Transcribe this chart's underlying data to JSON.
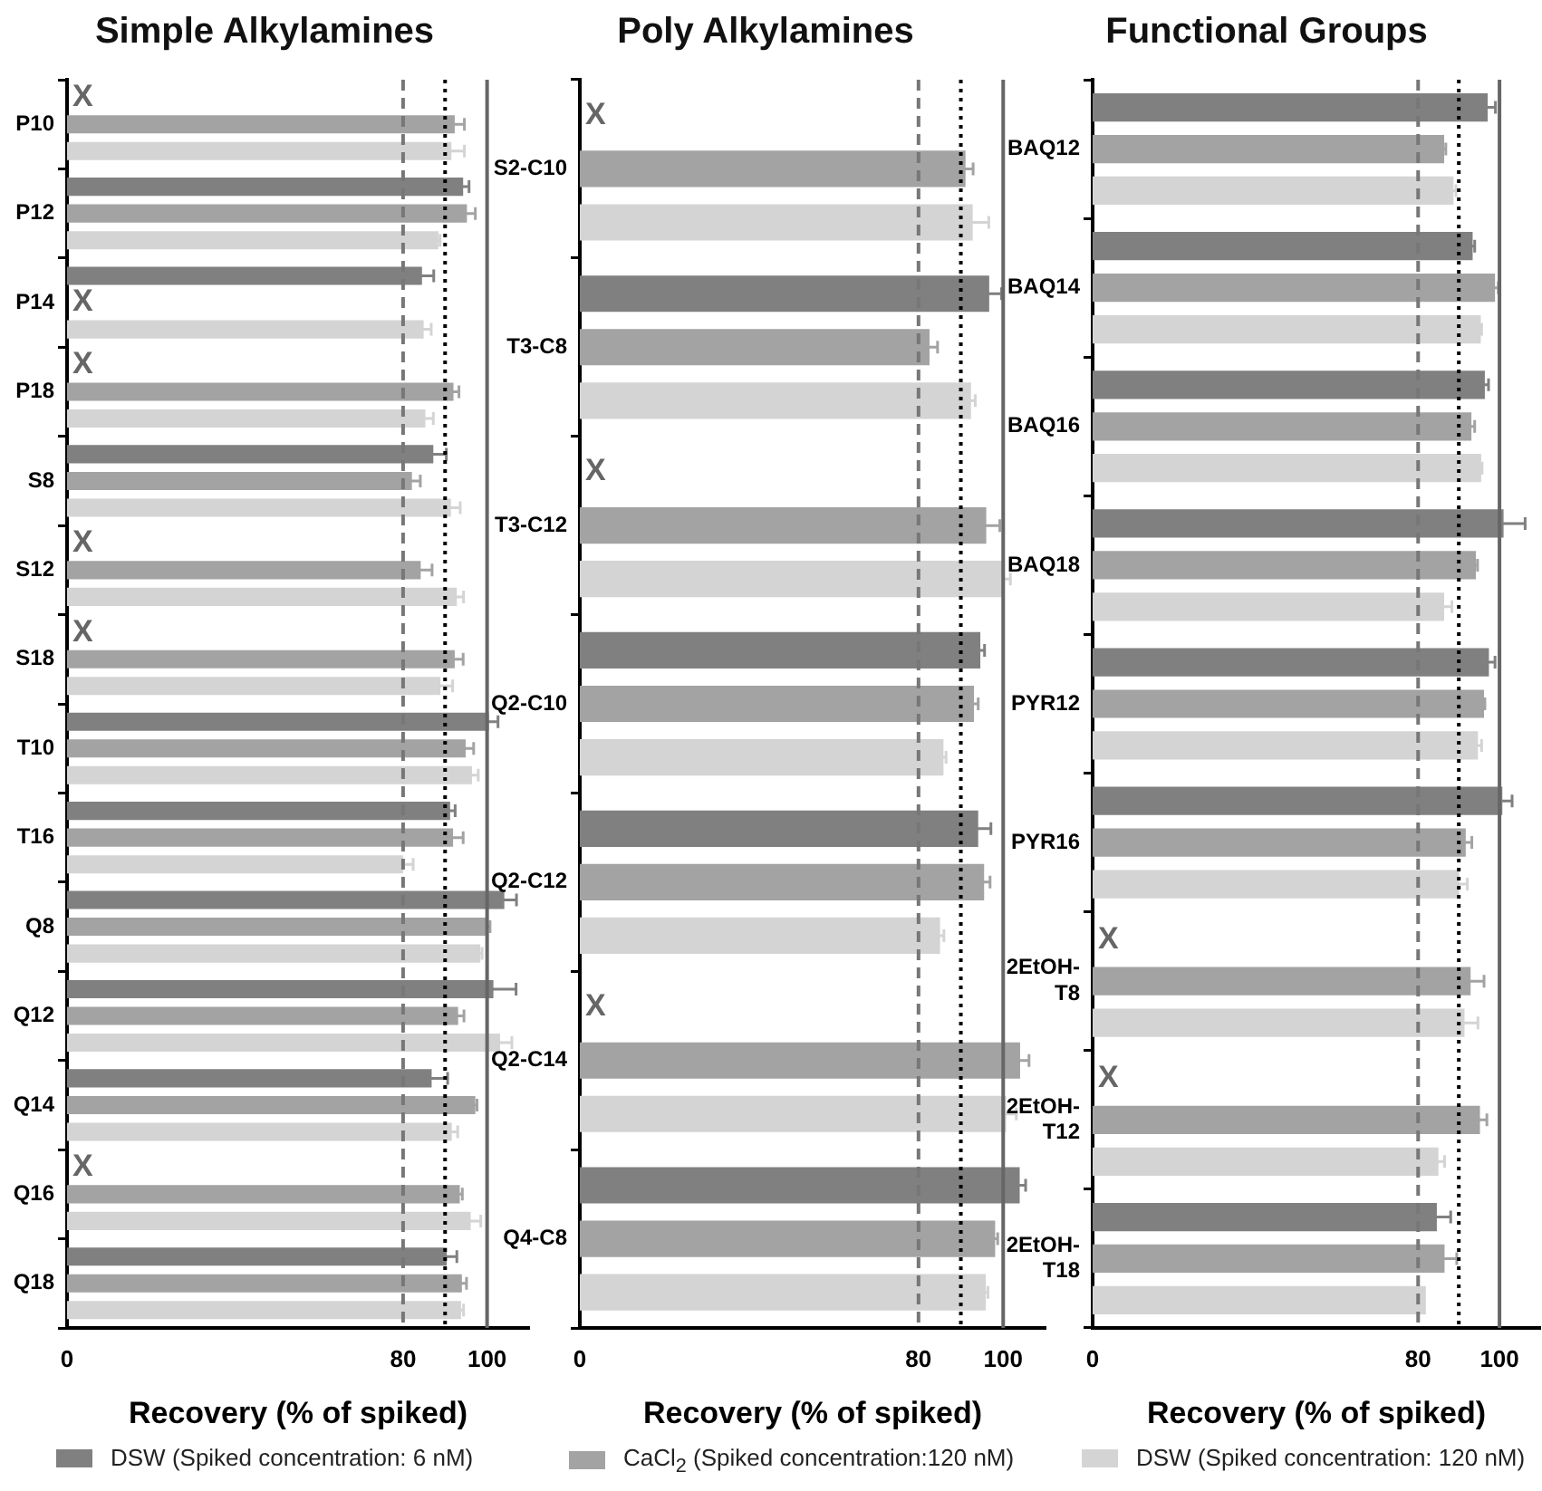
{
  "chart_data": [
    {
      "type": "bar",
      "orientation": "horizontal",
      "title": "Simple Alkylamines",
      "xlabel": "Recovery (% of spiked)",
      "categories": [
        "P10",
        "P12",
        "P14",
        "P18",
        "S8",
        "S12",
        "S18",
        "T10",
        "T16",
        "Q8",
        "Q12",
        "Q14",
        "Q16",
        "Q18"
      ],
      "series": [
        {
          "name": "DSW (Spiked concentration: 6 nM)",
          "color": "#808080",
          "values": [
            null,
            94.3,
            84.5,
            null,
            87.2,
            null,
            null,
            100.4,
            91.2,
            104.1,
            101.5,
            86.8,
            null,
            90.4
          ],
          "errors": [
            null,
            1.4,
            2.8,
            null,
            3.1,
            null,
            null,
            2.2,
            1.2,
            2.9,
            5.4,
            3.8,
            null,
            2.4
          ]
        },
        {
          "name": "CaCl$_{2}$ (Spiked concentration:120 nM)",
          "color": "#a3a3a3",
          "values": [
            92.3,
            95.2,
            null,
            92.0,
            82.1,
            84.2,
            92.3,
            94.9,
            91.9,
            100.3,
            93.1,
            97.2,
            93.5,
            94.0
          ],
          "errors": [
            2.3,
            2.0,
            null,
            1.3,
            2.0,
            2.7,
            2.0,
            1.9,
            2.4,
            0.4,
            1.4,
            0.4,
            0.6,
            1.1
          ]
        },
        {
          "name": "DSW (Spiked concentration: 120 nM)",
          "color": "#d4d4d4",
          "values": [
            91.5,
            88.4,
            84.9,
            85.3,
            91.4,
            92.8,
            88.9,
            96.4,
            80.0,
            98.4,
            103.1,
            91.6,
            96.1,
            93.8
          ],
          "errors": [
            3.1,
            0.4,
            1.8,
            1.9,
            2.2,
            1.6,
            2.9,
            1.5,
            2.4,
            0.4,
            2.8,
            1.4,
            2.4,
            0.6
          ]
        }
      ],
      "xlim": [
        0,
        110
      ],
      "xticks": [
        0,
        80,
        100
      ],
      "ref_lines": [
        {
          "axis": "x",
          "value": 80,
          "color": "#777777",
          "line_style": "dashed"
        },
        {
          "axis": "x",
          "value": 90,
          "color": "#000000",
          "line_style": "dotted"
        },
        {
          "axis": "x",
          "value": 100,
          "color": "#666666",
          "line_style": "solid"
        }
      ],
      "annotations": [
        "X",
        "X",
        "X",
        "X",
        "X",
        "X"
      ],
      "legend": "bottom"
    },
    {
      "type": "bar",
      "orientation": "horizontal",
      "title": "Poly Alkylamines",
      "xlabel": "Recovery (% of spiked)",
      "categories": [
        "S2-C10",
        "T3-C8",
        "T3-C12",
        "Q2-C10",
        "Q2-C12",
        "Q2-C14",
        "Q4-C8"
      ],
      "series": [
        {
          "color": "#808080",
          "values": [
            null,
            96.7,
            null,
            94.6,
            94.1,
            null,
            103.9
          ],
          "errors": [
            null,
            2.9,
            null,
            1.0,
            3.0,
            null,
            1.4
          ]
        },
        {
          "color": "#a3a3a3",
          "values": [
            91.1,
            82.6,
            96.0,
            93.1,
            95.5,
            104.0,
            98.1
          ],
          "errors": [
            1.8,
            1.9,
            3.2,
            1.0,
            1.4,
            2.1,
            0.6
          ]
        },
        {
          "color": "#d4d4d4",
          "values": [
            92.8,
            92.4,
            99.8,
            85.9,
            85.1,
            100.7,
            95.9
          ],
          "errors": [
            3.8,
            1.0,
            1.9,
            0.6,
            0.9,
            2.4,
            0.5
          ]
        }
      ],
      "xlim": [
        0,
        110
      ],
      "xticks": [
        0,
        80,
        100
      ],
      "ref_lines": [
        {
          "axis": "x",
          "value": 80,
          "color": "#777777",
          "line_style": "dashed"
        },
        {
          "axis": "x",
          "value": 90,
          "color": "#000000",
          "line_style": "dotted"
        },
        {
          "axis": "x",
          "value": 100,
          "color": "#666666",
          "line_style": "solid"
        }
      ],
      "annotations": [
        "X",
        "X",
        "X"
      ]
    },
    {
      "type": "bar",
      "orientation": "horizontal",
      "title": "Functional Groups",
      "xlabel": "Recovery (% of spiked)",
      "categories": [
        "BAQ12",
        "BAQ14",
        "BAQ16",
        "BAQ18",
        "PYR12",
        "PYR16",
        "2EtOH-T8",
        "2EtOH-T12",
        "2EtOH-T18"
      ],
      "series": [
        {
          "color": "#808080",
          "values": [
            97.1,
            93.4,
            96.4,
            101.0,
            97.4,
            100.7,
            null,
            null,
            84.6
          ],
          "errors": [
            1.9,
            0.5,
            0.9,
            5.3,
            1.5,
            2.4,
            null,
            null,
            3.4
          ]
        },
        {
          "color": "#a3a3a3",
          "values": [
            86.4,
            98.9,
            93.1,
            94.2,
            96.2,
            91.7,
            92.9,
            95.2,
            86.5
          ],
          "errors": [
            0.4,
            0.8,
            0.8,
            0.4,
            0.2,
            1.5,
            3.3,
            1.7,
            3.0
          ]
        },
        {
          "color": "#d4d4d4",
          "values": [
            88.7,
            95.4,
            95.5,
            86.4,
            94.7,
            90.1,
            91.4,
            85.0,
            81.9
          ],
          "errors": [
            0.6,
            0.2,
            0.2,
            1.9,
            0.9,
            2.0,
            3.3,
            1.5,
            null
          ]
        }
      ],
      "xlim": [
        0,
        110
      ],
      "xticks": [
        0,
        80,
        100
      ],
      "ref_lines": [
        {
          "axis": "x",
          "value": 80,
          "color": "#777777",
          "line_style": "dashed"
        },
        {
          "axis": "x",
          "value": 90,
          "color": "#000000",
          "line_style": "dotted"
        },
        {
          "axis": "x",
          "value": 100,
          "color": "#666666",
          "line_style": "solid"
        }
      ],
      "annotations": [
        "X",
        "X"
      ]
    }
  ]
}
